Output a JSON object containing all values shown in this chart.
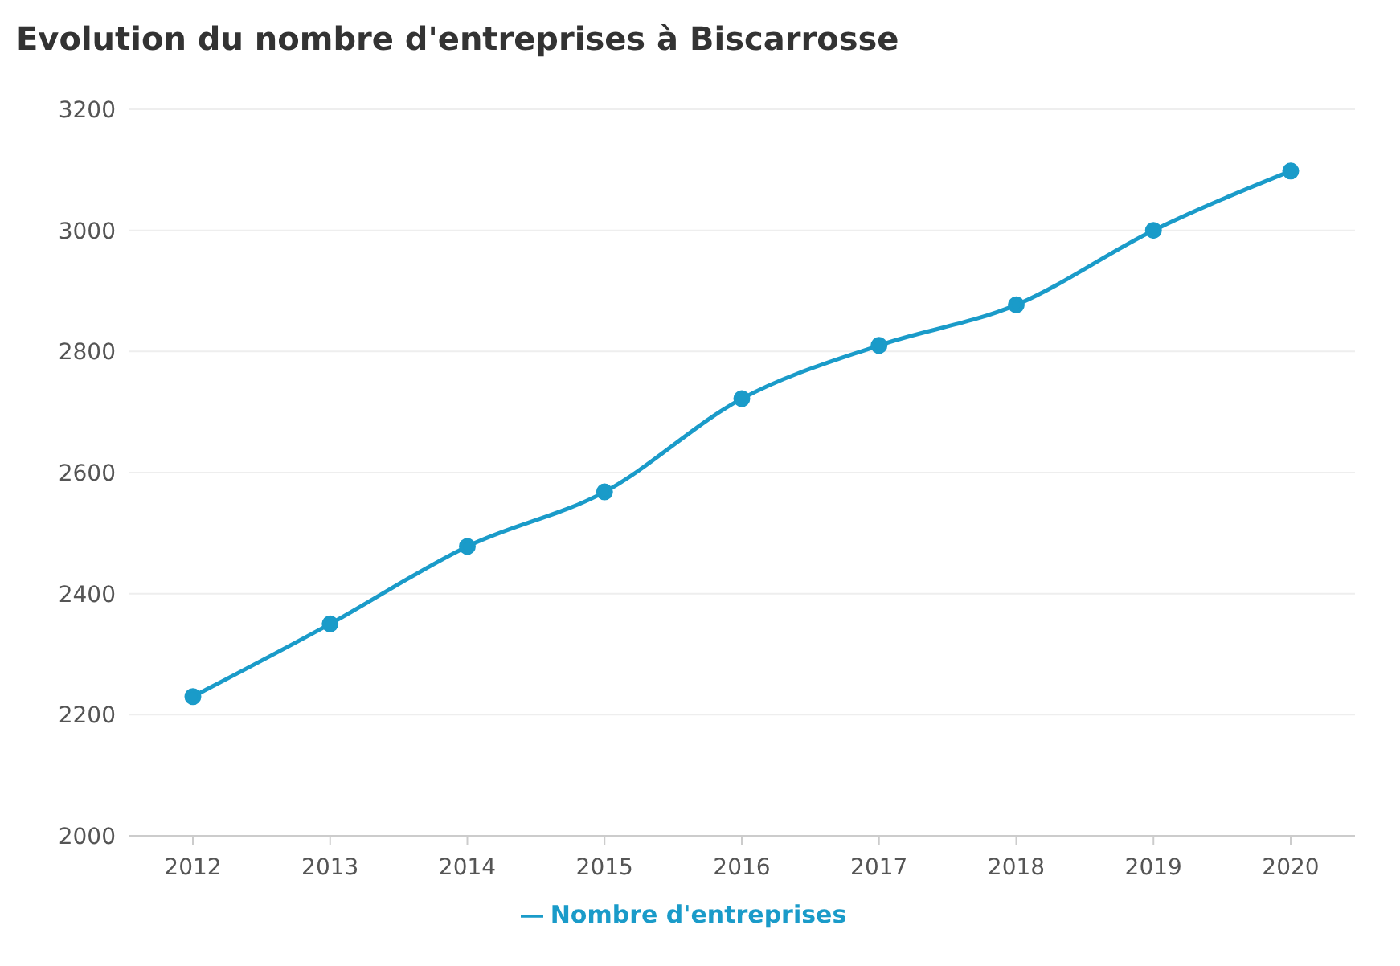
{
  "chart_data": {
    "type": "line",
    "title": "Evolution du nombre d'entreprises à Biscarrosse",
    "categories": [
      "2012",
      "2013",
      "2014",
      "2015",
      "2016",
      "2017",
      "2018",
      "2019",
      "2020"
    ],
    "series": [
      {
        "name": "Nombre d'entreprises",
        "color": "#1a9bc9",
        "values": [
          2230,
          2350,
          2478,
          2568,
          2722,
          2810,
          2877,
          3000,
          3098
        ]
      }
    ],
    "ylim": [
      2000,
      3200
    ],
    "yticks": [
      2000,
      2200,
      2400,
      2600,
      2800,
      3000,
      3200
    ],
    "grid": "y",
    "legend": "bottom",
    "marker": "circle"
  }
}
